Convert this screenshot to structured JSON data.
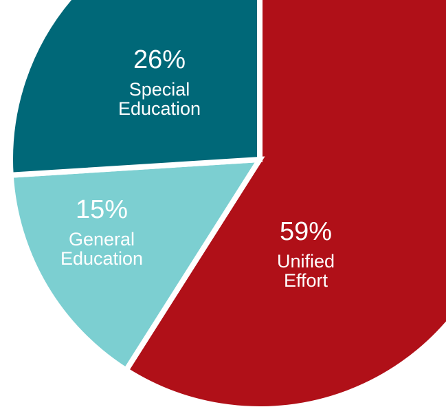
{
  "chart_data": {
    "type": "pie",
    "categories": [
      "Unified Effort",
      "General Education",
      "Special Education"
    ],
    "values": [
      59,
      15,
      26
    ],
    "value_labels": [
      "59%",
      "15%",
      "26%"
    ],
    "colors": [
      "#b01018",
      "#7ccfd1",
      "#006878"
    ]
  }
}
